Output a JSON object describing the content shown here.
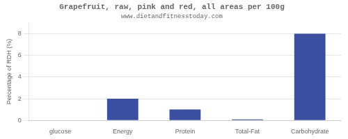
{
  "chart_data": {
    "type": "bar",
    "title": "Grapefruit, raw, pink and red, all areas per 100g",
    "subtitle": "www.dietandfitnesstoday.com",
    "categories": [
      "glucose",
      "Energy",
      "Protein",
      "Total-Fat",
      "Carbohydrate"
    ],
    "values": [
      0.0,
      2.0,
      1.0,
      0.1,
      8.0
    ],
    "color": "#3a4fa0",
    "ylabel": "Percentage of RDH (%)",
    "ylim": [
      0,
      9
    ],
    "yticks": [
      0,
      2,
      4,
      6,
      8
    ],
    "grid": true
  }
}
